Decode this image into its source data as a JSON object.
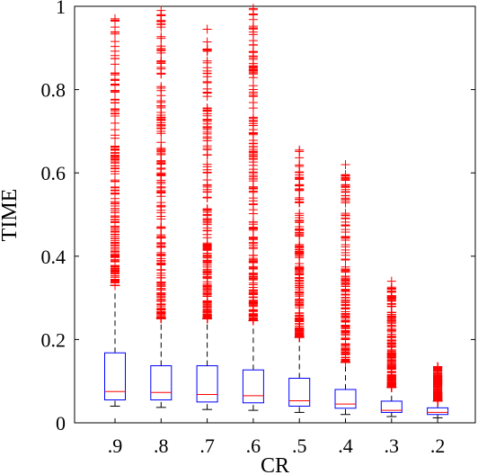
{
  "chart_data": {
    "type": "box",
    "xlabel": "CR",
    "ylabel": "TIME",
    "ylim": [
      0,
      1
    ],
    "yticks": [
      "0",
      "0.2",
      "0.4",
      "0.6",
      "0.8",
      "1"
    ],
    "categories": [
      ".9",
      ".8",
      ".7",
      ".6",
      ".5",
      ".4",
      ".3",
      ".2"
    ],
    "grid": false,
    "colors": {
      "box": "#0000ff",
      "median": "#ff0000",
      "outlier": "#ff0000",
      "whisker": "#000000"
    },
    "boxes": [
      {
        "label": ".9",
        "whisker_low": 0.04,
        "q1": 0.055,
        "median": 0.075,
        "q3": 0.168,
        "whisker_high": 0.33,
        "outlier_min": 0.33,
        "outlier_max": 0.97
      },
      {
        "label": ".8",
        "whisker_low": 0.037,
        "q1": 0.055,
        "median": 0.073,
        "q3": 0.137,
        "whisker_high": 0.25,
        "outlier_min": 0.25,
        "outlier_max": 0.99
      },
      {
        "label": ".7",
        "whisker_low": 0.032,
        "q1": 0.05,
        "median": 0.068,
        "q3": 0.137,
        "whisker_high": 0.25,
        "outlier_min": 0.25,
        "outlier_max": 0.945
      },
      {
        "label": ".6",
        "whisker_low": 0.03,
        "q1": 0.048,
        "median": 0.065,
        "q3": 0.127,
        "whisker_high": 0.245,
        "outlier_min": 0.245,
        "outlier_max": 0.995,
        "outliers_extra": [
          0.88
        ]
      },
      {
        "label": ".5",
        "whisker_low": 0.025,
        "q1": 0.04,
        "median": 0.053,
        "q3": 0.107,
        "whisker_high": 0.205,
        "outlier_min": 0.205,
        "outlier_max": 0.655
      },
      {
        "label": ".4",
        "whisker_low": 0.02,
        "q1": 0.035,
        "median": 0.045,
        "q3": 0.08,
        "whisker_high": 0.145,
        "outlier_min": 0.145,
        "outlier_max": 0.62
      },
      {
        "label": ".3",
        "whisker_low": 0.015,
        "q1": 0.025,
        "median": 0.03,
        "q3": 0.052,
        "whisker_high": 0.085,
        "outlier_min": 0.085,
        "outlier_max": 0.34
      },
      {
        "label": ".2",
        "whisker_low": 0.012,
        "q1": 0.02,
        "median": 0.025,
        "q3": 0.036,
        "whisker_high": 0.052,
        "outlier_min": 0.052,
        "outlier_max": 0.135
      }
    ]
  }
}
